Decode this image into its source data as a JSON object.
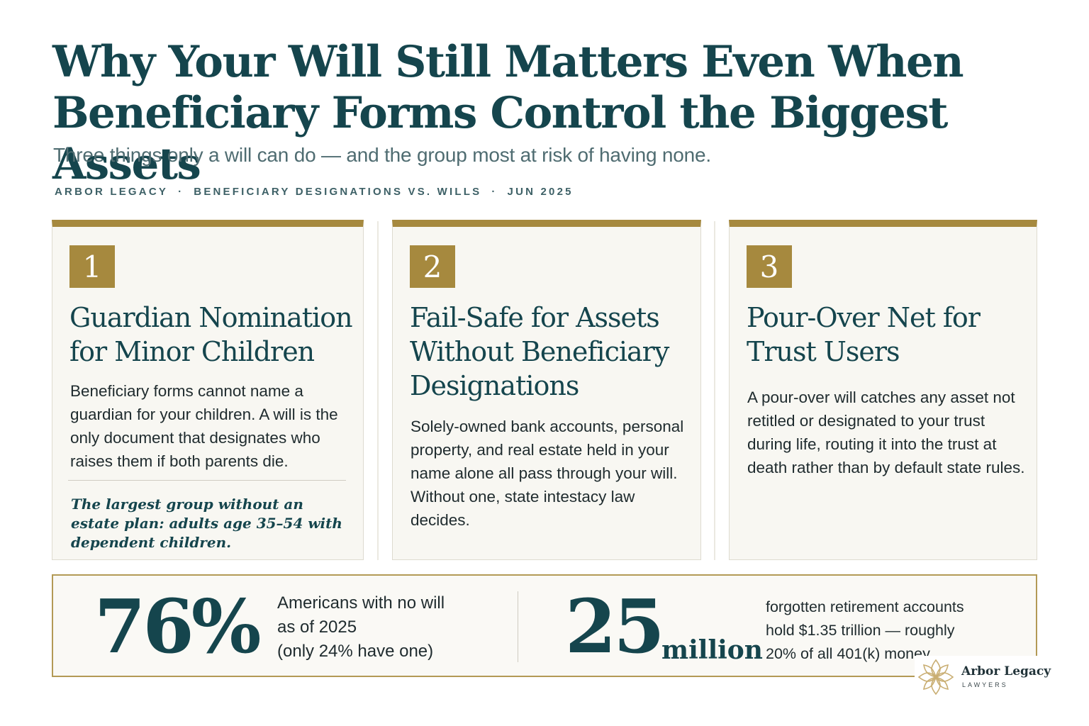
{
  "title": "Why Your Will Still Matters Even When Beneficiary Forms Control the Biggest Assets",
  "subtitle": "Three things only a will can do — and the group most at risk of having none.",
  "meta": {
    "brand": "ARBOR LEGACY",
    "separator": "·",
    "topic": "BENEFICIARY DESIGNATIONS VS. WILLS",
    "date": "JUN 2025"
  },
  "cards": [
    {
      "number": "1",
      "heading": "Guardian Nomination for Minor Children",
      "body": "Beneficiary forms cannot name a guardian for your children. A will is the only document that designates who raises them if both parents die.",
      "note": "The largest group without an estate plan: adults age 35–54 with dependent children."
    },
    {
      "number": "2",
      "heading": "Fail-Safe for Assets Without Beneficiary Designations",
      "body": "Solely-owned bank accounts, personal property, and real estate held in your name alone all pass through your will. Without one, state intestacy law decides."
    },
    {
      "number": "3",
      "heading": "Pour-Over Net for Trust Users",
      "body": "A pour-over will catches any asset not retitled or designated to your trust during life, routing it into the trust at death rather than by default state rules."
    }
  ],
  "stats": [
    {
      "value": "76%",
      "line1": "Americans with no will",
      "line2": "as of 2025",
      "line3": "(only 24% have one)"
    },
    {
      "value": "25",
      "unit": "million",
      "line1": "forgotten retirement accounts",
      "line2": "hold $1.35 trillion — roughly",
      "line3": "20% of all 401(k) money."
    }
  ],
  "logo": {
    "name": "Arbor Legacy",
    "sub": "LAWYERS",
    "icon": "leaf-knot-icon"
  },
  "colors": {
    "primary": "#15454d",
    "accent": "#a6893e",
    "card_bg": "#f8f7f2"
  }
}
